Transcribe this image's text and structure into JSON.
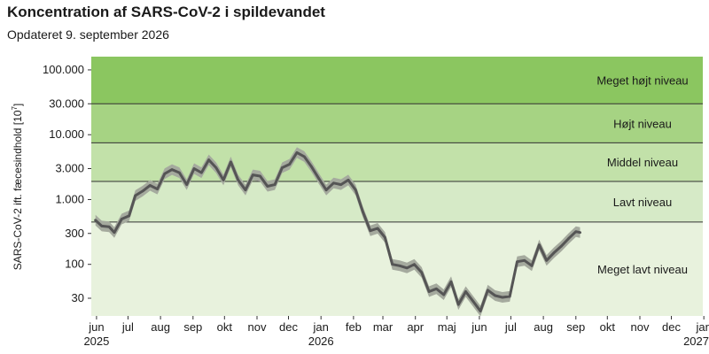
{
  "chart_data": {
    "type": "line",
    "title": "Koncentration af SARS-CoV-2 i spildevandet",
    "subtitle": "Opdateret 9. september 2026",
    "ylabel_text": "SARS-CoV-2 ift. fæcesindhold [10",
    "ylabel_exp": "7",
    "ylabel_close": "]",
    "y_scale": "log",
    "ylim": [
      16,
      160000
    ],
    "y_ticks": [
      {
        "value": 30,
        "label": "30"
      },
      {
        "value": 100,
        "label": "100"
      },
      {
        "value": 300,
        "label": "300"
      },
      {
        "value": 1000,
        "label": "1.000"
      },
      {
        "value": 3000,
        "label": "3.000"
      },
      {
        "value": 10000,
        "label": "10.000"
      },
      {
        "value": 30000,
        "label": "30.000"
      },
      {
        "value": 100000,
        "label": "100.000"
      }
    ],
    "xlim": [
      "2025-05-27",
      "2026-12-31"
    ],
    "x_ticks": [
      {
        "date": "2025-06-01",
        "label": "jun",
        "year": "2025"
      },
      {
        "date": "2025-07-01",
        "label": "jul"
      },
      {
        "date": "2025-08-01",
        "label": "aug"
      },
      {
        "date": "2025-09-01",
        "label": "sep"
      },
      {
        "date": "2025-10-01",
        "label": "okt"
      },
      {
        "date": "2025-11-01",
        "label": "nov"
      },
      {
        "date": "2025-12-01",
        "label": "dec"
      },
      {
        "date": "2026-01-01",
        "label": "jan",
        "year": "2026"
      },
      {
        "date": "2026-02-01",
        "label": "feb"
      },
      {
        "date": "2026-03-01",
        "label": "mar"
      },
      {
        "date": "2026-04-01",
        "label": "apr"
      },
      {
        "date": "2026-05-01",
        "label": "maj"
      },
      {
        "date": "2026-06-01",
        "label": "jun"
      },
      {
        "date": "2026-07-01",
        "label": "jul"
      },
      {
        "date": "2026-08-01",
        "label": "aug"
      },
      {
        "date": "2026-09-01",
        "label": "sep"
      },
      {
        "date": "2026-10-01",
        "label": "okt"
      },
      {
        "date": "2026-11-01",
        "label": "nov"
      },
      {
        "date": "2026-12-01",
        "label": "dec"
      },
      {
        "date": "2027-01-01",
        "label": "jan",
        "year": "2027"
      }
    ],
    "levels": [
      {
        "name": "Meget lavt niveau",
        "from": 16,
        "to": 450,
        "color": "#e8f2dd"
      },
      {
        "name": "Lavt niveau",
        "from": 450,
        "to": 1900,
        "color": "#d6eac7"
      },
      {
        "name": "Middel niveau",
        "from": 1900,
        "to": 7500,
        "color": "#c2e1a9"
      },
      {
        "name": "Højt niveau",
        "from": 7500,
        "to": 30000,
        "color": "#a6d383"
      },
      {
        "name": "Meget højt niveau",
        "from": 30000,
        "to": 160000,
        "color": "#8bc660"
      }
    ],
    "series": [
      {
        "color": "#555555",
        "band_color": "#a5aa9e",
        "points": [
          {
            "date": "2025-05-31",
            "value": 480
          },
          {
            "date": "2025-06-06",
            "value": 390
          },
          {
            "date": "2025-06-13",
            "value": 380
          },
          {
            "date": "2025-06-18",
            "value": 310
          },
          {
            "date": "2025-06-25",
            "value": 500
          },
          {
            "date": "2025-07-02",
            "value": 560
          },
          {
            "date": "2025-07-08",
            "value": 1150
          },
          {
            "date": "2025-07-15",
            "value": 1350
          },
          {
            "date": "2025-07-22",
            "value": 1650
          },
          {
            "date": "2025-07-29",
            "value": 1450
          },
          {
            "date": "2025-08-05",
            "value": 2500
          },
          {
            "date": "2025-08-12",
            "value": 2900
          },
          {
            "date": "2025-08-19",
            "value": 2600
          },
          {
            "date": "2025-08-26",
            "value": 1700
          },
          {
            "date": "2025-09-02",
            "value": 3000
          },
          {
            "date": "2025-09-09",
            "value": 2600
          },
          {
            "date": "2025-09-16",
            "value": 4100
          },
          {
            "date": "2025-09-23",
            "value": 3100
          },
          {
            "date": "2025-09-30",
            "value": 2000
          },
          {
            "date": "2025-10-07",
            "value": 3800
          },
          {
            "date": "2025-10-14",
            "value": 2000
          },
          {
            "date": "2025-10-21",
            "value": 1400
          },
          {
            "date": "2025-10-28",
            "value": 2400
          },
          {
            "date": "2025-11-04",
            "value": 2300
          },
          {
            "date": "2025-11-11",
            "value": 1600
          },
          {
            "date": "2025-11-18",
            "value": 1700
          },
          {
            "date": "2025-11-25",
            "value": 3100
          },
          {
            "date": "2025-12-02",
            "value": 3500
          },
          {
            "date": "2025-12-09",
            "value": 5300
          },
          {
            "date": "2025-12-16",
            "value": 4600
          },
          {
            "date": "2025-12-23",
            "value": 3200
          },
          {
            "date": "2025-12-30",
            "value": 2100
          },
          {
            "date": "2026-01-06",
            "value": 1400
          },
          {
            "date": "2026-01-13",
            "value": 1800
          },
          {
            "date": "2026-01-20",
            "value": 1700
          },
          {
            "date": "2026-01-27",
            "value": 2000
          },
          {
            "date": "2026-02-03",
            "value": 1400
          },
          {
            "date": "2026-02-10",
            "value": 640
          },
          {
            "date": "2026-02-17",
            "value": 330
          },
          {
            "date": "2026-02-24",
            "value": 360
          },
          {
            "date": "2026-03-03",
            "value": 260
          },
          {
            "date": "2026-03-10",
            "value": 100
          },
          {
            "date": "2026-03-17",
            "value": 95
          },
          {
            "date": "2026-03-24",
            "value": 88
          },
          {
            "date": "2026-03-31",
            "value": 100
          },
          {
            "date": "2026-04-07",
            "value": 75
          },
          {
            "date": "2026-04-14",
            "value": 38
          },
          {
            "date": "2026-04-21",
            "value": 42
          },
          {
            "date": "2026-04-28",
            "value": 34
          },
          {
            "date": "2026-05-05",
            "value": 54
          },
          {
            "date": "2026-05-12",
            "value": 24
          },
          {
            "date": "2026-05-19",
            "value": 38
          },
          {
            "date": "2026-05-26",
            "value": 27
          },
          {
            "date": "2026-06-02",
            "value": 19
          },
          {
            "date": "2026-06-09",
            "value": 40
          },
          {
            "date": "2026-06-16",
            "value": 33
          },
          {
            "date": "2026-06-23",
            "value": 31
          },
          {
            "date": "2026-06-30",
            "value": 32
          },
          {
            "date": "2026-07-07",
            "value": 110
          },
          {
            "date": "2026-07-14",
            "value": 115
          },
          {
            "date": "2026-07-21",
            "value": 95
          },
          {
            "date": "2026-07-28",
            "value": 200
          },
          {
            "date": "2026-08-04",
            "value": 115
          },
          {
            "date": "2026-08-11",
            "value": 150
          },
          {
            "date": "2026-08-18",
            "value": 190
          },
          {
            "date": "2026-08-25",
            "value": 250
          },
          {
            "date": "2026-09-01",
            "value": 320
          },
          {
            "date": "2026-09-05",
            "value": 310
          }
        ]
      }
    ]
  }
}
